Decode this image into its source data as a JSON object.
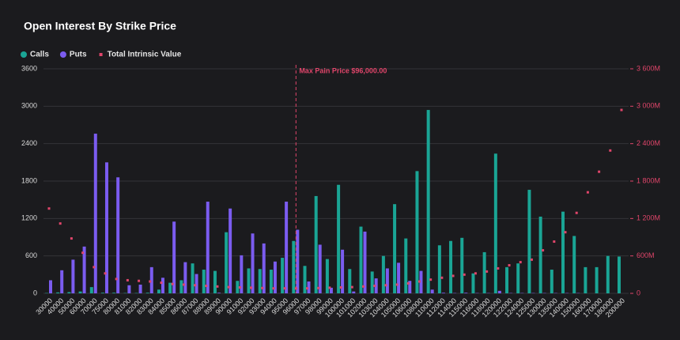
{
  "chart_data": {
    "type": "bar",
    "title": "Open Interest By Strike Price",
    "categories": [
      "30000",
      "40000",
      "50000",
      "60000",
      "70000",
      "75000",
      "80000",
      "81000",
      "82000",
      "83000",
      "84000",
      "85000",
      "86000",
      "87000",
      "88000",
      "89000",
      "90000",
      "91000",
      "92000",
      "93000",
      "94000",
      "95000",
      "96000",
      "97000",
      "98000",
      "99000",
      "100000",
      "101000",
      "102000",
      "103000",
      "104000",
      "105000",
      "106000",
      "108000",
      "110000",
      "112000",
      "114000",
      "115000",
      "116000",
      "118000",
      "120000",
      "122000",
      "124000",
      "125000",
      "130000",
      "135000",
      "140000",
      "150000",
      "160000",
      "170000",
      "180000",
      "200000"
    ],
    "series": [
      {
        "name": "Calls",
        "color": "#1aa595",
        "values": [
          5,
          15,
          20,
          30,
          100,
          10,
          10,
          5,
          5,
          10,
          60,
          170,
          210,
          480,
          380,
          360,
          980,
          200,
          400,
          390,
          380,
          570,
          840,
          440,
          1560,
          550,
          1740,
          390,
          1070,
          350,
          600,
          1430,
          880,
          1960,
          2940,
          770,
          840,
          890,
          320,
          660,
          2240,
          420,
          480,
          1660,
          1230,
          380,
          1310,
          920,
          420,
          420,
          600,
          590
        ]
      },
      {
        "name": "Puts",
        "color": "#7b5cf0",
        "values": [
          210,
          370,
          540,
          750,
          2560,
          2100,
          1860,
          130,
          140,
          420,
          250,
          1150,
          500,
          310,
          1470,
          10,
          1360,
          610,
          960,
          800,
          510,
          1470,
          1020,
          190,
          780,
          90,
          700,
          30,
          990,
          240,
          400,
          490,
          200,
          360,
          60,
          10,
          5,
          10,
          5,
          5,
          40,
          5,
          5,
          5,
          5,
          5,
          5,
          5,
          0,
          0,
          0,
          0
        ]
      },
      {
        "name": "Total Intrinsic Value",
        "color": "#e0456a",
        "axis": "y2",
        "values": [
          1360,
          1120,
          880,
          650,
          420,
          320,
          230,
          210,
          200,
          190,
          170,
          150,
          140,
          130,
          120,
          110,
          100,
          95,
          90,
          85,
          80,
          80,
          78,
          80,
          85,
          90,
          95,
          100,
          110,
          120,
          130,
          140,
          160,
          190,
          220,
          250,
          280,
          300,
          320,
          350,
          400,
          450,
          500,
          540,
          690,
          830,
          980,
          1290,
          1620,
          1950,
          2290,
          2940
        ]
      }
    ],
    "ylim": [
      0,
      3600
    ],
    "yticks": [
      0,
      600,
      1200,
      1800,
      2400,
      3000,
      3600
    ],
    "y2lim": [
      0,
      3600
    ],
    "y2ticks": [
      0,
      {
        "value": 600,
        "label": "600M"
      },
      {
        "value": 1200,
        "label": "1 200M"
      },
      {
        "value": 1800,
        "label": "1 800M"
      },
      {
        "value": 2400,
        "label": "2 400M"
      },
      {
        "value": 3000,
        "label": "3 000M"
      },
      {
        "value": 3600,
        "label": "3 600M"
      }
    ],
    "annotation": {
      "text": "Max Pain Price $96,000.00",
      "x": "96000"
    },
    "grid": true
  }
}
